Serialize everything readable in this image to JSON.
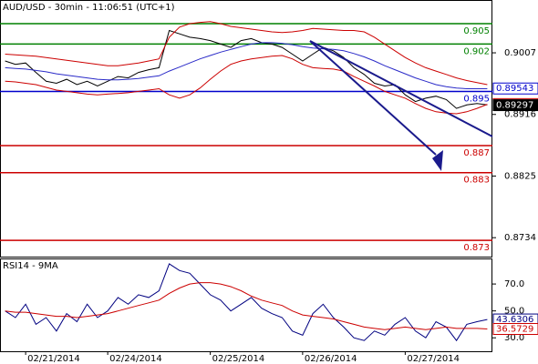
{
  "chart_data": [
    {
      "type": "line",
      "title": "AUD/USD - 30min - 11:06:51 (UTC+1)",
      "categories": [
        null,
        null,
        "02/21/2014",
        null,
        null,
        null,
        null,
        null,
        null,
        null,
        "02/24/2014",
        null,
        null,
        null,
        null,
        null,
        null,
        null,
        null,
        null,
        "02/25/2014",
        null,
        null,
        null,
        null,
        null,
        null,
        null,
        null,
        "02/26/2014",
        null,
        null,
        null,
        null,
        null,
        null,
        null,
        null,
        null,
        "02/27/2014",
        null,
        null,
        null,
        null,
        null,
        null,
        null,
        null
      ],
      "series": [
        {
          "color": "#000000",
          "values": [
            0.8995,
            0.899,
            0.8992,
            0.8978,
            0.8965,
            0.8962,
            0.8968,
            0.896,
            0.8965,
            0.8958,
            0.8965,
            0.8972,
            0.897,
            0.8978,
            0.8982,
            0.8985,
            0.904,
            0.9035,
            0.903,
            0.9028,
            0.9025,
            0.902,
            0.9015,
            0.9025,
            0.9028,
            0.9022,
            0.902,
            0.9015,
            0.9005,
            0.8995,
            0.9005,
            0.9015,
            0.901,
            0.9,
            0.8985,
            0.8975,
            0.8962,
            0.8958,
            0.896,
            0.8945,
            0.8935,
            0.894,
            0.8943,
            0.8938,
            0.8925,
            0.893,
            0.8932,
            0.893
          ]
        },
        {
          "color": "#2a2ac8",
          "values": [
            0.8985,
            0.8984,
            0.8983,
            0.8981,
            0.8979,
            0.8976,
            0.8974,
            0.8972,
            0.897,
            0.8968,
            0.8967,
            0.8967,
            0.8968,
            0.8969,
            0.8971,
            0.8973,
            0.898,
            0.8986,
            0.8992,
            0.8998,
            0.9003,
            0.9008,
            0.9012,
            0.9016,
            0.902,
            0.9022,
            0.9022,
            0.9021,
            0.9019,
            0.9016,
            0.9014,
            0.9013,
            0.9012,
            0.901,
            0.9006,
            0.9001,
            0.8995,
            0.8988,
            0.8982,
            0.8976,
            0.897,
            0.8965,
            0.896,
            0.8957,
            0.8955,
            0.8954,
            0.8954,
            0.8954
          ]
        },
        {
          "color": "#cc0000",
          "values": [
            0.9005,
            0.9004,
            0.9003,
            0.9002,
            0.9,
            0.8998,
            0.8996,
            0.8994,
            0.8992,
            0.899,
            0.8988,
            0.8988,
            0.899,
            0.8992,
            0.8995,
            0.8998,
            0.903,
            0.9045,
            0.905,
            0.9052,
            0.9053,
            0.905,
            0.9046,
            0.9044,
            0.9042,
            0.904,
            0.9038,
            0.9037,
            0.9038,
            0.904,
            0.9043,
            0.9042,
            0.9041,
            0.904,
            0.904,
            0.9038,
            0.903,
            0.902,
            0.901,
            0.9,
            0.8992,
            0.8985,
            0.898,
            0.8975,
            0.897,
            0.8966,
            0.8963,
            0.896
          ]
        },
        {
          "color": "#cc0000",
          "values": [
            0.8965,
            0.8964,
            0.8962,
            0.896,
            0.8956,
            0.8952,
            0.895,
            0.8948,
            0.8946,
            0.8945,
            0.8946,
            0.8947,
            0.8948,
            0.895,
            0.8952,
            0.8954,
            0.8945,
            0.894,
            0.8945,
            0.8955,
            0.8968,
            0.898,
            0.899,
            0.8995,
            0.8998,
            0.9,
            0.9002,
            0.9003,
            0.8998,
            0.899,
            0.8985,
            0.8984,
            0.8983,
            0.898,
            0.8972,
            0.8965,
            0.8958,
            0.895,
            0.8945,
            0.894,
            0.8932,
            0.8925,
            0.892,
            0.8918,
            0.8917,
            0.892,
            0.8925,
            0.8931
          ]
        }
      ],
      "ylim": [
        0.8706,
        0.9085
      ],
      "yticks": [
        0.9007,
        0.8916,
        0.8825,
        0.8734
      ],
      "levels": [
        {
          "value": 0.905,
          "color": "#008000"
        },
        {
          "value": 0.902,
          "color": "#008000"
        },
        {
          "value": 0.895,
          "color": "#0000cc"
        },
        {
          "value": 0.887,
          "color": "#cc0000"
        },
        {
          "value": 0.883,
          "color": "#cc0000"
        },
        {
          "value": 0.873,
          "color": "#cc0000"
        }
      ],
      "price_tags": [
        {
          "value": 0.89543,
          "color": "#0000cc"
        },
        {
          "value": 0.89313,
          "color": "#cc0000"
        },
        {
          "value": 0.89297,
          "color": "#000000"
        }
      ]
    },
    {
      "type": "line",
      "title": "RSI14 - 9MA",
      "series": [
        {
          "color": "#000080",
          "values": [
            50,
            45,
            55,
            40,
            45,
            35,
            48,
            42,
            55,
            45,
            50,
            60,
            55,
            62,
            60,
            65,
            85,
            80,
            78,
            70,
            62,
            58,
            50,
            55,
            60,
            52,
            48,
            45,
            35,
            32,
            48,
            55,
            45,
            38,
            30,
            28,
            35,
            32,
            40,
            45,
            35,
            30,
            42,
            38,
            28,
            40,
            42,
            43.6306
          ]
        },
        {
          "color": "#cc0000",
          "values": [
            50,
            49,
            49,
            48,
            47,
            46,
            46,
            45,
            46,
            47,
            48,
            50,
            52,
            54,
            56,
            58,
            63,
            67,
            70,
            71,
            71,
            70,
            68,
            65,
            61,
            58,
            56,
            54,
            50,
            47,
            46,
            45,
            44,
            42,
            40,
            38,
            37,
            36,
            37,
            38,
            37,
            36,
            37,
            38,
            37,
            37,
            37,
            36.5729
          ]
        }
      ],
      "ylim": [
        20,
        89
      ],
      "yticks": [
        {
          "value": 70,
          "label": "70.0"
        },
        {
          "value": 50,
          "label": "50.0"
        },
        {
          "value": 30,
          "label": "30.0"
        }
      ],
      "price_tags": [
        {
          "value": 43.6306,
          "color": "#000080"
        },
        {
          "value": 36.5729,
          "color": "#cc0000"
        }
      ]
    }
  ]
}
